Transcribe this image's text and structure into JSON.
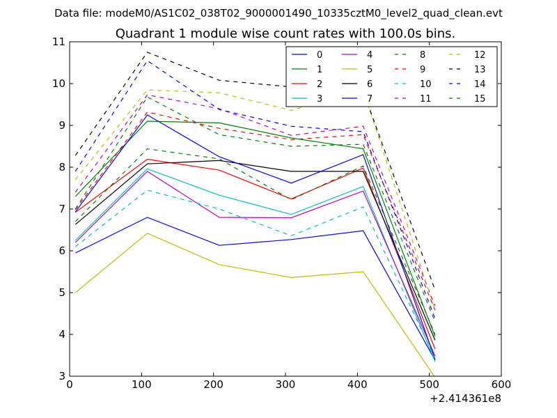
{
  "figure": {
    "suptitle": "Data file: modeM0/AS1C02_038T02_9000001490_10335cztM0_level2_quad_clean.evt"
  },
  "chart_data": {
    "type": "line",
    "title": "Quadrant 1 module wise count rates with 100.0s bins.",
    "xlabel": "",
    "ylabel": "",
    "x_offset_label": "+2.414361e8",
    "xlim": [
      0,
      600
    ],
    "ylim": [
      3,
      11
    ],
    "x_ticks": [
      0,
      100,
      200,
      300,
      400,
      500,
      600
    ],
    "y_ticks": [
      3,
      4,
      5,
      6,
      7,
      8,
      9,
      10,
      11
    ],
    "grid": false,
    "legend": {
      "placement": "top-right",
      "columns": 4
    },
    "x": [
      8,
      108,
      208,
      308,
      408,
      508
    ],
    "series": [
      {
        "name": "0",
        "color": "#0000ff",
        "dash": false,
        "values": [
          5.95,
          6.8,
          6.13,
          6.27,
          6.48,
          3.38
        ]
      },
      {
        "name": "1",
        "color": "#008000",
        "dash": false,
        "values": [
          7.3,
          9.1,
          9.06,
          8.7,
          8.44,
          3.95
        ]
      },
      {
        "name": "2",
        "color": "#ff0000",
        "dash": false,
        "values": [
          6.92,
          8.19,
          7.93,
          7.24,
          7.98,
          3.65
        ]
      },
      {
        "name": "3",
        "color": "#00bfbf",
        "dash": false,
        "values": [
          6.25,
          7.96,
          7.33,
          6.87,
          7.54,
          3.35
        ]
      },
      {
        "name": "4",
        "color": "#bf00bf",
        "dash": false,
        "values": [
          6.2,
          7.9,
          6.8,
          6.79,
          7.43,
          3.48
        ]
      },
      {
        "name": "5",
        "color": "#bfbf00",
        "dash": false,
        "values": [
          5.0,
          6.42,
          5.67,
          5.36,
          5.5,
          2.97
        ]
      },
      {
        "name": "6",
        "color": "#000000",
        "dash": false,
        "values": [
          6.63,
          8.08,
          8.16,
          7.9,
          7.9,
          3.86
        ]
      },
      {
        "name": "7",
        "color": "#0000ff",
        "dash": false,
        "values": [
          6.93,
          9.25,
          8.25,
          7.62,
          8.3,
          3.4
        ]
      },
      {
        "name": "8",
        "color": "#008000",
        "dash": true,
        "values": [
          6.7,
          8.44,
          8.2,
          7.22,
          8.03,
          4.0
        ]
      },
      {
        "name": "9",
        "color": "#ff0000",
        "dash": true,
        "values": [
          6.98,
          9.32,
          8.93,
          8.66,
          8.78,
          4.58
        ]
      },
      {
        "name": "10",
        "color": "#00bfbf",
        "dash": true,
        "values": [
          6.1,
          7.45,
          7.0,
          6.36,
          7.05,
          3.43
        ]
      },
      {
        "name": "11",
        "color": "#bf00bf",
        "dash": true,
        "values": [
          7.4,
          9.73,
          9.4,
          8.76,
          8.98,
          4.68
        ]
      },
      {
        "name": "12",
        "color": "#bfbf00",
        "dash": true,
        "values": [
          7.7,
          9.85,
          9.78,
          9.36,
          9.85,
          4.58
        ]
      },
      {
        "name": "13",
        "color": "#000000",
        "dash": true,
        "values": [
          8.28,
          10.75,
          10.08,
          9.92,
          9.82,
          5.06
        ]
      },
      {
        "name": "14",
        "color": "#0000ff",
        "dash": true,
        "values": [
          7.9,
          10.55,
          9.38,
          8.98,
          8.85,
          4.38
        ]
      },
      {
        "name": "15",
        "color": "#008000",
        "dash": true,
        "values": [
          7.0,
          9.68,
          8.78,
          8.5,
          8.55,
          4.3
        ]
      }
    ]
  }
}
